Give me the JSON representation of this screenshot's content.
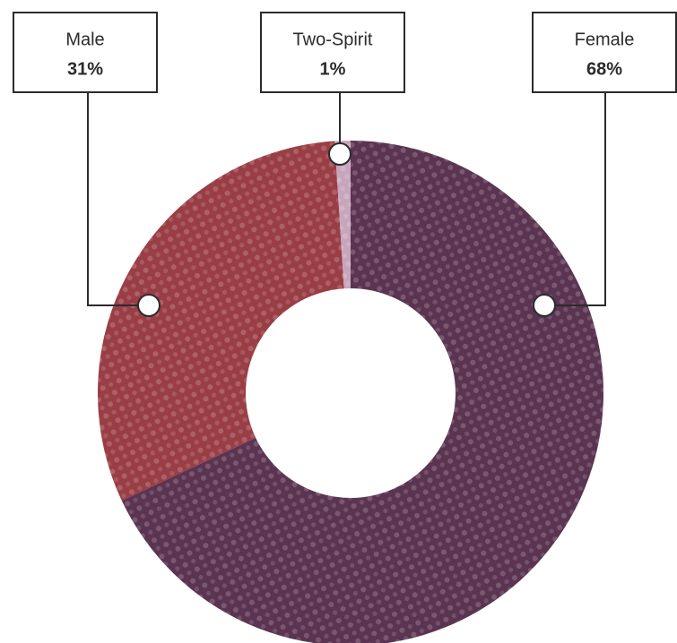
{
  "chart_data": {
    "type": "donut",
    "categories": [
      "Female",
      "Male",
      "Two-Spirit"
    ],
    "values": [
      68,
      31,
      1
    ],
    "value_labels": [
      "68%",
      "31%",
      "1%"
    ],
    "colors": [
      "#5b3451",
      "#9a3e46",
      "#c7a6bd"
    ]
  }
}
